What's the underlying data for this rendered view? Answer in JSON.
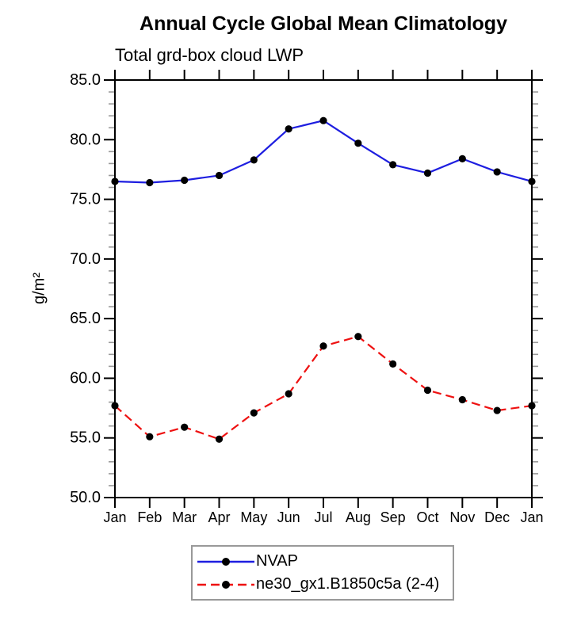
{
  "chart_data": {
    "type": "line",
    "title": "Annual Cycle Global Mean Climatology",
    "subtitle": "Total grd-box cloud LWP",
    "ylabel": "g/m²",
    "xlabel": "",
    "x_categories": [
      "Jan",
      "Feb",
      "Mar",
      "Apr",
      "May",
      "Jun",
      "Jul",
      "Aug",
      "Sep",
      "Oct",
      "Nov",
      "Dec",
      "Jan"
    ],
    "ylim": [
      50.0,
      85.0
    ],
    "y_major_step": 5.0,
    "y_minor_step": 1.0,
    "y_tick_labels": [
      "85.0",
      "80.0",
      "75.0",
      "70.0",
      "65.0",
      "60.0",
      "55.0",
      "50.0"
    ],
    "grid": false,
    "legend_position": "bottom-center",
    "series": [
      {
        "name": "NVAP",
        "color": "#1e1ee0",
        "line_style": "solid",
        "marker": "filled-circle",
        "marker_color": "#000000",
        "values": [
          76.5,
          76.4,
          76.6,
          77.0,
          78.3,
          80.9,
          81.6,
          79.7,
          77.9,
          77.2,
          78.4,
          77.3,
          76.5
        ]
      },
      {
        "name": "ne30_gx1.B1850c5a (2-4)",
        "color": "#ee1111",
        "line_style": "dashed",
        "marker": "filled-circle",
        "marker_color": "#000000",
        "values": [
          57.7,
          55.1,
          55.9,
          54.9,
          57.1,
          58.7,
          62.7,
          63.5,
          61.2,
          59.0,
          58.2,
          57.3,
          57.7
        ]
      }
    ],
    "axis_color": "#000000",
    "minor_tick_color": "#999999"
  }
}
